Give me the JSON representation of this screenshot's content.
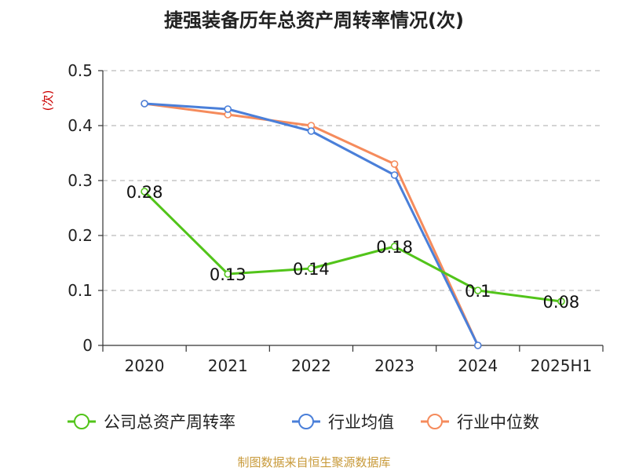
{
  "chart_data": {
    "type": "line",
    "title": "捷强装备历年总资产周转率情况(次)",
    "ylabel": "(次)",
    "categories": [
      "2020",
      "2021",
      "2022",
      "2023",
      "2024",
      "2025H1"
    ],
    "ylim": [
      0,
      0.5
    ],
    "yticks": [
      "0",
      "0.1",
      "0.2",
      "0.3",
      "0.4",
      "0.5"
    ],
    "grid": true,
    "legend": "bottom",
    "series": [
      {
        "name": "公司总资产周转率",
        "color": "#52c41a",
        "values": [
          0.28,
          0.13,
          0.14,
          0.18,
          0.1,
          0.08
        ],
        "labels": [
          "0.28",
          "0.13",
          "0.14",
          "0.18",
          "0.1",
          "0.08"
        ]
      },
      {
        "name": "行业均值",
        "color": "#4a7fd9",
        "values": [
          0.44,
          0.43,
          0.39,
          0.31,
          0,
          null
        ]
      },
      {
        "name": "行业中位数",
        "color": "#f58b5c",
        "values": [
          0.44,
          0.42,
          0.4,
          0.33,
          0,
          null
        ]
      }
    ]
  },
  "footer": {
    "source": "制图数据来自恒生聚源数据库"
  }
}
